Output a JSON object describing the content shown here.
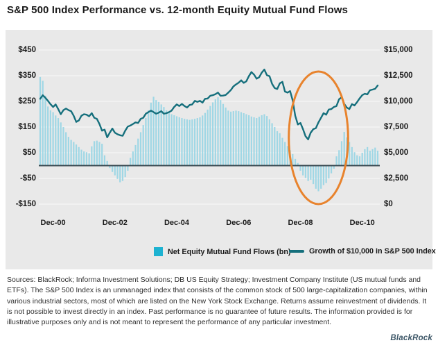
{
  "title": "S&P 500 Index Performance vs. 12-month Equity Mutual Fund Flows",
  "chart_data": {
    "type": "combo (bar + line)",
    "x_unit": "month",
    "x_start": "Jul-2000",
    "x_end": "Jun-2011",
    "x_tick_labels": [
      "Dec-00",
      "Dec-02",
      "Dec-04",
      "Dec-06",
      "Dec-08",
      "Dec-10"
    ],
    "x_tick_month_index": [
      5,
      29,
      53,
      77,
      101,
      125
    ],
    "left_axis": {
      "ticks": [
        "$450",
        "$350",
        "$250",
        "$150",
        "$50",
        "-$50",
        "-$150"
      ],
      "min": -150,
      "max": 450,
      "unit": "$bn"
    },
    "right_axis": {
      "ticks": [
        "$15,000",
        "$12,500",
        "$10,000",
        "$7,500",
        "$5,000",
        "$2,500",
        "$0"
      ],
      "min": 0,
      "max": 15000,
      "unit": "$"
    },
    "grid": "horizontal gridlines on gray panel",
    "legend_position": "bottom center inside panel",
    "series": [
      {
        "name": "Net Equity Mutual Fund Flows (bn)",
        "type": "bar",
        "axis": "left",
        "color": "#9fd7e5",
        "values": [
          345,
          330,
          272,
          230,
          215,
          208,
          195,
          185,
          168,
          150,
          130,
          112,
          100,
          92,
          82,
          72,
          62,
          55,
          52,
          48,
          75,
          95,
          97,
          92,
          85,
          40,
          18,
          -10,
          -25,
          -38,
          -52,
          -65,
          -60,
          -45,
          -20,
          30,
          55,
          80,
          105,
          130,
          158,
          185,
          215,
          245,
          268,
          255,
          248,
          238,
          228,
          215,
          205,
          200,
          196,
          192,
          188,
          185,
          182,
          180,
          178,
          180,
          182,
          185,
          188,
          195,
          205,
          218,
          232,
          246,
          258,
          266,
          255,
          240,
          226,
          214,
          210,
          212,
          214,
          212,
          208,
          204,
          200,
          196,
          191,
          188,
          185,
          190,
          196,
          200,
          193,
          180,
          165,
          150,
          134,
          126,
          108,
          92,
          76,
          60,
          45,
          26,
          10,
          -20,
          -38,
          -48,
          -60,
          -55,
          -72,
          -90,
          -100,
          -90,
          -76,
          -68,
          -50,
          -30,
          -12,
          36,
          60,
          95,
          131,
          110,
          92,
          72,
          52,
          40,
          36,
          50,
          64,
          72,
          58,
          64,
          70,
          58
        ]
      },
      {
        "name": "Growth of $10,000 in S&P 500 Index",
        "type": "line",
        "axis": "right",
        "color": "#156f7c",
        "values": [
          10250,
          10600,
          10350,
          10050,
          9720,
          9450,
          9700,
          9250,
          8750,
          9150,
          9300,
          9150,
          9050,
          8600,
          8000,
          8150,
          8600,
          8750,
          8700,
          8550,
          8850,
          8400,
          8300,
          7800,
          7150,
          7250,
          6500,
          6950,
          7350,
          6950,
          6800,
          6700,
          6650,
          7150,
          7550,
          7650,
          7800,
          7950,
          7900,
          8300,
          8400,
          8800,
          8950,
          9100,
          8950,
          8800,
          8900,
          9050,
          8800,
          8850,
          8950,
          9100,
          9450,
          9700,
          9550,
          9750,
          9550,
          9400,
          9650,
          9700,
          10050,
          9950,
          10050,
          9880,
          10250,
          10280,
          10550,
          10600,
          10700,
          10850,
          10550,
          10560,
          10620,
          10850,
          11100,
          11450,
          11650,
          11820,
          12050,
          11800,
          11950,
          12450,
          12850,
          12600,
          12200,
          12350,
          12800,
          13100,
          12550,
          12450,
          11700,
          11300,
          11200,
          11750,
          11900,
          10950,
          10850,
          11000,
          10100,
          8600,
          7750,
          7900,
          7300,
          6600,
          6300,
          6950,
          7300,
          7400,
          7950,
          8400,
          8850,
          8700,
          9200,
          9250,
          9450,
          9550,
          10200,
          10400,
          9750,
          9400,
          9250,
          9730,
          9600,
          9930,
          10300,
          10610,
          10740,
          10680,
          11080,
          11150,
          11220,
          11550
        ]
      }
    ],
    "annotation": {
      "shape": "ellipse",
      "color": "#e8832d",
      "center_month_index": 108,
      "span_months": 23,
      "value_top_right_axis": 12900,
      "value_bottom_right_axis": 0
    }
  },
  "legend": [
    {
      "label": "Net Equity Mutual Fund Flows (bn)",
      "swatch": "#1db2d1",
      "type": "square"
    },
    {
      "label": "Growth of $10,000 in S&P 500 Index",
      "swatch": "#156f7c",
      "type": "line"
    }
  ],
  "footer": {
    "source_text": "Sources: BlackRock; Informa Investment Solutions; DB US Equity Strategy; Investment Company Institute (US mutual funds and ETFs). The S&P 500 Index is an unmanaged index that consists of the common stock of 500 large-capitalization companies, within various industrial sectors, most of which are listed on the New York Stock Exchange. Returns assume reinvestment of dividends. It is not possible to invest directly in an index. Past performance is no guarantee of future results. The information provided is for illustrative purposes only and is not meant to represent the performance of any particular investment.",
    "logo": "BlackRock"
  },
  "colors": {
    "panel_background": "#e9e9e9",
    "gridline": "#f6f6f6",
    "zero_axis_line": "#3a4a52",
    "bar": "#9fd7e5",
    "line": "#156f7c",
    "annotation_ellipse": "#e8832d",
    "title_text": "#1a1a1a",
    "logo_text": "#3b5566"
  }
}
